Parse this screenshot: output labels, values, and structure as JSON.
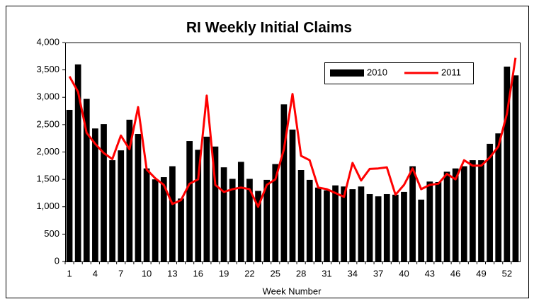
{
  "chart_data": {
    "type": "bar_line",
    "title": "RI Weekly Initial Claims",
    "x_label": "Week Number",
    "categories": [
      1,
      null,
      null,
      4,
      null,
      null,
      7,
      null,
      null,
      10,
      null,
      null,
      13,
      null,
      null,
      16,
      null,
      null,
      19,
      null,
      null,
      22,
      null,
      null,
      25,
      null,
      null,
      28,
      null,
      null,
      31,
      null,
      null,
      34,
      null,
      null,
      37,
      null,
      null,
      40,
      null,
      null,
      43,
      null,
      null,
      46,
      null,
      null,
      49,
      null,
      null,
      52,
      null
    ],
    "series": [
      {
        "name": "2010",
        "type": "bar",
        "color": "#000000",
        "values": [
          2770,
          3600,
          2970,
          2430,
          2510,
          1850,
          2030,
          2590,
          2330,
          1700,
          1500,
          1540,
          1740,
          1150,
          2200,
          2040,
          2280,
          2100,
          1720,
          1510,
          1820,
          1510,
          1290,
          1490,
          1780,
          2870,
          2410,
          1670,
          1490,
          1350,
          1300,
          1390,
          1370,
          1320,
          1370,
          1230,
          1190,
          1230,
          1220,
          1270,
          1740,
          1130,
          1460,
          1450,
          1640,
          1700,
          1740,
          1850,
          1850,
          2150,
          2340,
          3560,
          3400
        ]
      },
      {
        "name": "2011",
        "type": "line",
        "color": "#ff0000",
        "values": [
          3380,
          3100,
          2350,
          2150,
          1980,
          1870,
          2300,
          2050,
          2820,
          1680,
          1520,
          1400,
          1050,
          1120,
          1420,
          1500,
          3030,
          1400,
          1270,
          1320,
          1350,
          1320,
          1000,
          1400,
          1500,
          2050,
          3060,
          1930,
          1850,
          1350,
          1320,
          1250,
          1180,
          1800,
          1480,
          1690,
          1700,
          1720,
          1220,
          1400,
          1700,
          1320,
          1400,
          1420,
          1600,
          1500,
          1850,
          1750,
          1750,
          1900,
          2100,
          2700,
          3720
        ]
      }
    ],
    "ylim": [
      0,
      4000
    ],
    "yticks": [
      0,
      500,
      {
        "value": 1000,
        "label": "1,000"
      },
      {
        "value": 1500,
        "label": "1,500"
      },
      {
        "value": 2000,
        "label": "2,000"
      },
      {
        "value": 2500,
        "label": "2,500"
      },
      {
        "value": 3000,
        "label": "3,000"
      },
      {
        "value": 3500,
        "label": "3,500"
      },
      {
        "value": 4000,
        "label": "4,000"
      }
    ],
    "legend": "top-right"
  }
}
